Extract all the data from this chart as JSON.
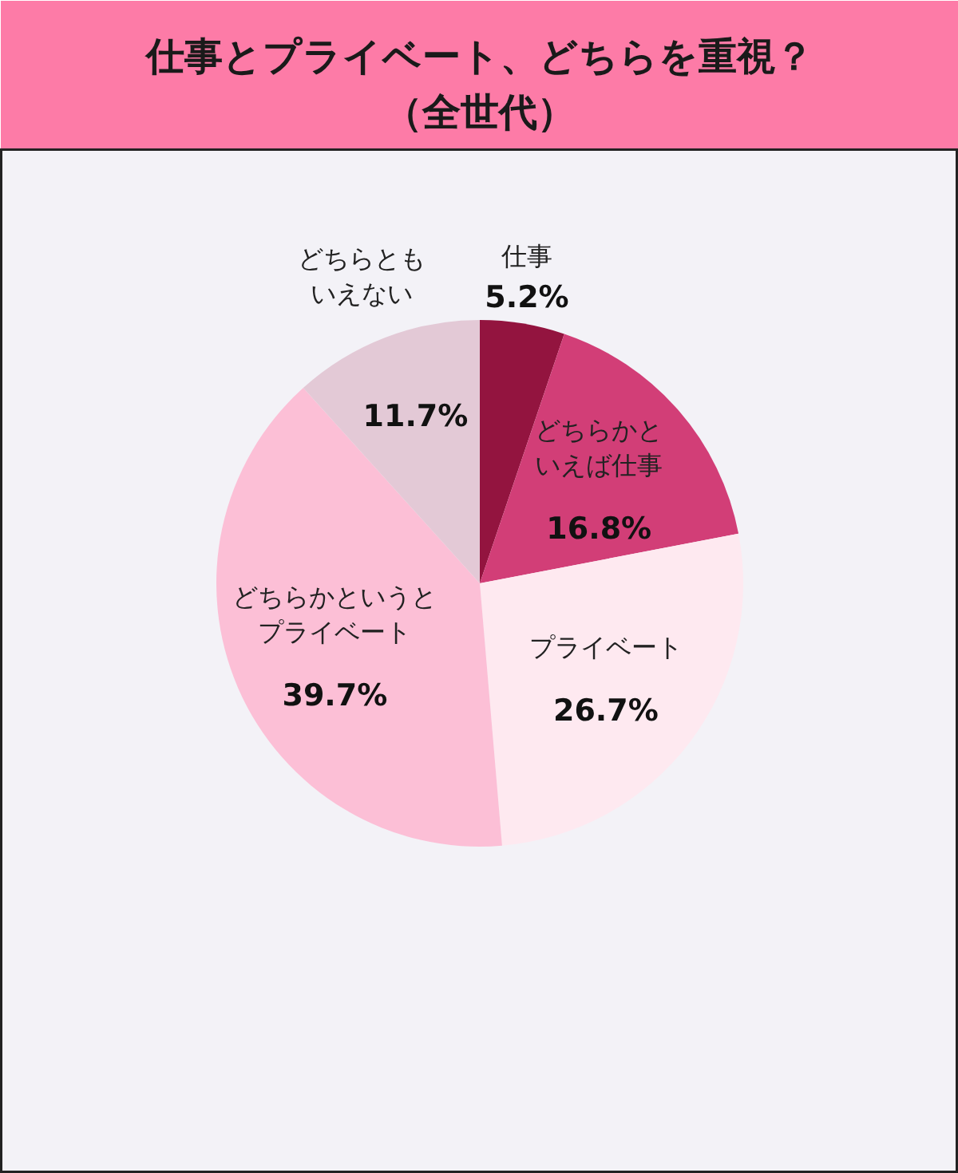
{
  "chart_data": {
    "type": "pie",
    "title": "仕事とプライベート、どちらを重視？（全世代）",
    "categories": [
      "仕事",
      "どちらかといえば仕事",
      "プライベート",
      "どちらかというとプライベート",
      "どちらともいえない"
    ],
    "values": [
      5.2,
      16.8,
      26.7,
      39.7,
      11.7
    ],
    "colors": [
      "#93143f",
      "#d23e77",
      "#fee9f0",
      "#fcbfd6",
      "#e3c9d6"
    ],
    "value_labels": [
      "5.2%",
      "16.8%",
      "26.7%",
      "39.7%",
      "11.7%"
    ]
  }
}
